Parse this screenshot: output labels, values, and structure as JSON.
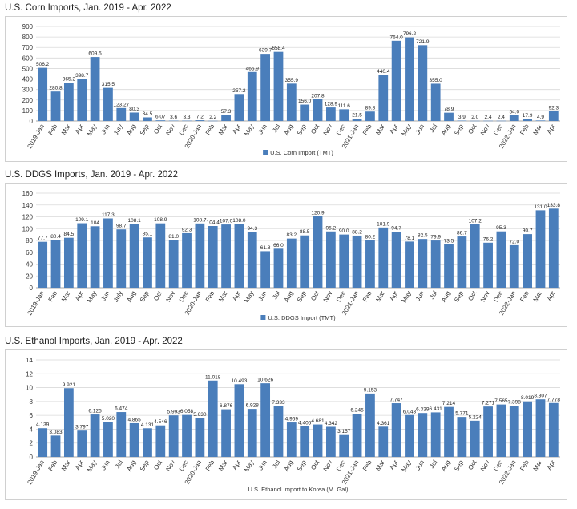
{
  "colors": {
    "bar": "#4a7ebb",
    "grid": "#d9d9d9",
    "axis": "#8c8c8c"
  },
  "chart_data": [
    {
      "type": "bar",
      "title": "U.S. Corn Imports, Jan. 2019 - Apr. 2022",
      "legend": "U.S. Corn Import (TMT)",
      "legend_marker": true,
      "legend_placement": "bottom",
      "ylim": [
        0,
        900
      ],
      "yticks": [
        0,
        100,
        200,
        300,
        400,
        500,
        600,
        700,
        800,
        900
      ],
      "grid": true,
      "categories": [
        "2019-Jan",
        "Feb",
        "Mar",
        "Apr",
        "May",
        "Jun",
        "July",
        "Aug",
        "Sep",
        "Oct",
        "Nov",
        "Dec",
        "2020-Jan",
        "Feb",
        "Mar",
        "Apr",
        "May",
        "Jun",
        "Jul",
        "Aug",
        "Sep",
        "Oct",
        "Nov",
        "Dec",
        "2021-Jan",
        "Feb",
        "Mar",
        "Apr",
        "May",
        "Jun",
        "Jul",
        "Aug",
        "Sep",
        "Oct",
        "Nov",
        "Dec",
        "2022-Jan",
        "Feb",
        "Mar",
        "Apr"
      ],
      "values": [
        506.2,
        280.8,
        365.2,
        398.7,
        609.5,
        315.5,
        123.27,
        80.3,
        34.5,
        6.07,
        3.6,
        3.3,
        7.2,
        2.2,
        57.3,
        257.2,
        466.9,
        639.7,
        658.4,
        355.9,
        156.0,
        207.8,
        128.9,
        111.6,
        21.5,
        89.8,
        440.4,
        764.0,
        796.2,
        721.9,
        355.0,
        78.9,
        3.9,
        2.0,
        2.4,
        2.4,
        54.0,
        17.9,
        4.9,
        92.3
      ],
      "labels": [
        "506.2",
        "280.8",
        "365.2",
        "398.7",
        "609.5",
        "315.5",
        "123.27",
        "80.3",
        "34.5",
        "6.07",
        "3.6",
        "3.3",
        "7.2",
        "2.2",
        "57.3",
        "257.2",
        "466.9",
        "639.7",
        "658.4",
        "355.9",
        "156.0",
        "207.8",
        "128.9",
        "111.6",
        "21.5",
        "89.8",
        "440.4",
        "764.0",
        "796.2",
        "721.9",
        "355.0",
        "78.9",
        "3.9",
        "2.0",
        "2.4",
        "2.4",
        "54.0",
        "17.9",
        "4.9",
        "92.3"
      ]
    },
    {
      "type": "bar",
      "title": "U.S. DDGS Imports, Jan. 2019 - Apr. 2022",
      "legend": "U.S. DDGS Import (TMT)",
      "legend_marker": true,
      "legend_placement": "bottom",
      "ylim": [
        0,
        160
      ],
      "yticks": [
        0,
        20,
        40,
        60,
        80,
        100,
        120,
        140,
        160
      ],
      "grid": true,
      "categories": [
        "2019-Jan",
        "Feb",
        "Mar",
        "Apr",
        "May",
        "Jun",
        "July",
        "Aug",
        "Sep",
        "Oct",
        "Nov",
        "Dec",
        "2020-Jan",
        "Feb",
        "Mar",
        "Apr",
        "May",
        "Jun",
        "Jul",
        "Aug",
        "Sep",
        "Oct",
        "Nov",
        "Dec",
        "2021-Jan",
        "Feb",
        "Mar",
        "Apr",
        "May",
        "Jun",
        "Jul",
        "Aug",
        "Sep",
        "Oct",
        "Nov",
        "Dec",
        "2022-Jan",
        "Feb",
        "Mar",
        "Apr"
      ],
      "values": [
        77.7,
        80.4,
        84.5,
        109.1,
        104,
        117.3,
        98.7,
        108.1,
        85.1,
        108.9,
        81.0,
        92.3,
        108.7,
        104.4,
        107.0,
        108.0,
        94.3,
        61.8,
        66.0,
        83.2,
        88.5,
        120.9,
        95.2,
        90.0,
        88.2,
        80.2,
        101.9,
        94.7,
        78.1,
        82.5,
        79.9,
        73.5,
        86.7,
        107.2,
        76.2,
        95.3,
        72.0,
        90.7,
        131.0,
        133.8
      ],
      "labels": [
        "77.7",
        "80.4",
        "84.5",
        "109.1",
        "104",
        "117.3",
        "98.7",
        "108.1",
        "85.1",
        "108.9",
        "81.0",
        "92.3",
        "108.7",
        "104.4",
        "107.0",
        "108.0",
        "94.3",
        "61.8",
        "66.0",
        "83.2",
        "88.5",
        "120.9",
        "95.2",
        "90.0",
        "88.2",
        "80.2",
        "101.9",
        "94.7",
        "78.1",
        "82.5",
        "79.9",
        "73.5",
        "86.7",
        "107.2",
        "76.2",
        "95.3",
        "72.0",
        "90.7",
        "131.0",
        "133.8"
      ]
    },
    {
      "type": "bar",
      "title": "U.S. Ethanol Imports, Jan. 2019 - Apr. 2022",
      "legend": "U.S. Ethanol Import to Korea (M. Gal)",
      "legend_marker": false,
      "legend_placement": "bottom",
      "ylim": [
        0,
        14
      ],
      "yticks": [
        0,
        2,
        4,
        6,
        8,
        10,
        12,
        14
      ],
      "grid": true,
      "categories": [
        "2019-Jan",
        "Feb",
        "Mar",
        "Apr",
        "May",
        "Jun",
        "Jul",
        "Aug",
        "Sep",
        "Oct",
        "Nov",
        "Dec",
        "2020-Jan",
        "Feb",
        "Mar",
        "Apr",
        "May",
        "Jun",
        "Jul",
        "Aug",
        "Sep",
        "Oct",
        "Nov",
        "Dec",
        "2021-Jan",
        "Feb",
        "Mar",
        "Apr",
        "May",
        "Jun",
        "Jul",
        "Aug",
        "Sep",
        "Oct",
        "Nov",
        "Dec",
        "2022-Jan",
        "Feb",
        "Mar",
        "Apr"
      ],
      "values": [
        4.139,
        3.083,
        9.921,
        3.797,
        6.125,
        5.02,
        6.474,
        4.865,
        4.131,
        4.546,
        5.993,
        6.058,
        5.63,
        11.018,
        6.876,
        10.493,
        6.928,
        10.626,
        7.333,
        4.969,
        4.405,
        4.681,
        4.342,
        3.157,
        6.245,
        9.153,
        4.361,
        7.747,
        6.043,
        6.339,
        6.431,
        7.214,
        5.771,
        5.224,
        7.271,
        7.565,
        7.398,
        8.019,
        8.307,
        7.778
      ],
      "labels": [
        "4.139",
        "3.083",
        "9.921",
        "3.797",
        "6.125",
        "5.020",
        "6.474",
        "4.865",
        "4.131",
        "4.546",
        "5.993",
        "6.058",
        "5.630",
        "11.018",
        "6.876",
        "10.493",
        "6.928",
        "10.626",
        "7.333",
        "4.969",
        "4.405",
        "4.681",
        "4.342",
        "3.157",
        "6.245",
        "9.153",
        "4.361",
        "7.747",
        "6.043",
        "6.339",
        "6.431",
        "7.214",
        "5.771",
        "5.224",
        "7.271",
        "7.565",
        "7.398",
        "8.019",
        "8.307",
        "7.778"
      ]
    }
  ]
}
